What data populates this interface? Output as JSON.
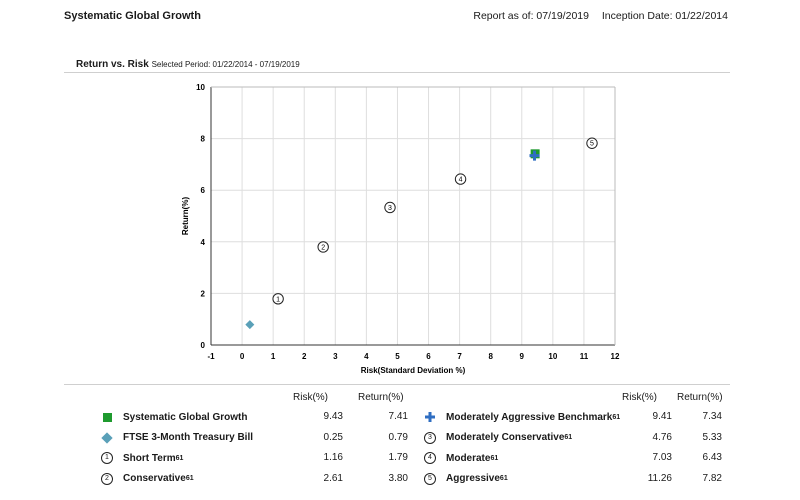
{
  "header": {
    "title": "Systematic Global Growth",
    "report_as_of": "Report as of: 07/19/2019",
    "inception_date": "Inception Date: 01/22/2014"
  },
  "section": {
    "title": "Return vs. Risk",
    "selected_period": "Selected Period:  01/22/2014 - 07/19/2019"
  },
  "chart_data": {
    "type": "scatter",
    "xlabel": "Risk(Standard Deviation %)",
    "ylabel": "Return(%)",
    "xlim": [
      -1,
      12
    ],
    "ylim": [
      0,
      10
    ],
    "xticks": [
      "-1",
      "0",
      "1",
      "2",
      "3",
      "4",
      "5",
      "6",
      "7",
      "8",
      "9",
      "10",
      "11",
      "12"
    ],
    "yticks": [
      "0",
      "2",
      "4",
      "6",
      "8",
      "10"
    ],
    "grid": true,
    "points": [
      {
        "name": "Systematic Global Growth",
        "x": 9.43,
        "y": 7.41,
        "marker": "square",
        "color": "#1e9a2e"
      },
      {
        "name": "FTSE 3-Month Treasury Bill",
        "x": 0.25,
        "y": 0.79,
        "marker": "diamond",
        "color": "#5aa0b8"
      },
      {
        "name": "Short Term",
        "x": 1.16,
        "y": 1.79,
        "marker": "circle",
        "label": "1"
      },
      {
        "name": "Conservative",
        "x": 2.61,
        "y": 3.8,
        "marker": "circle",
        "label": "2"
      },
      {
        "name": "Moderately Aggressive Benchmark",
        "x": 9.41,
        "y": 7.34,
        "marker": "plus",
        "color": "#2f6ec2"
      },
      {
        "name": "Moderately Conservative",
        "x": 4.76,
        "y": 5.33,
        "marker": "circle",
        "label": "3"
      },
      {
        "name": "Moderate",
        "x": 7.03,
        "y": 6.43,
        "marker": "circle",
        "label": "4"
      },
      {
        "name": "Aggressive",
        "x": 11.26,
        "y": 7.82,
        "marker": "circle",
        "label": "5"
      }
    ]
  },
  "legend": {
    "risk_header": "Risk(%)",
    "return_header": "Return(%)",
    "left": [
      {
        "icon": "green-square",
        "name": "Systematic Global Growth",
        "sup": "",
        "risk": "9.43",
        "ret": "7.41"
      },
      {
        "icon": "teal-diamond",
        "name": "FTSE 3-Month Treasury Bill",
        "sup": "",
        "risk": "0.25",
        "ret": "0.79"
      },
      {
        "icon": "circle-1",
        "name": "Short Term",
        "sup": "61",
        "risk": "1.16",
        "ret": "1.79"
      },
      {
        "icon": "circle-2",
        "name": "Conservative",
        "sup": "61",
        "risk": "2.61",
        "ret": "3.80"
      }
    ],
    "right": [
      {
        "icon": "blue-plus",
        "name": "Moderately Aggressive Benchmark",
        "sup": "61",
        "risk": "9.41",
        "ret": "7.34"
      },
      {
        "icon": "circle-3",
        "name": "Moderately Conservative",
        "sup": "61",
        "risk": "4.76",
        "ret": "5.33"
      },
      {
        "icon": "circle-4",
        "name": "Moderate",
        "sup": "61",
        "risk": "7.03",
        "ret": "6.43"
      },
      {
        "icon": "circle-5",
        "name": "Aggressive",
        "sup": "61",
        "risk": "11.26",
        "ret": "7.82"
      }
    ]
  }
}
